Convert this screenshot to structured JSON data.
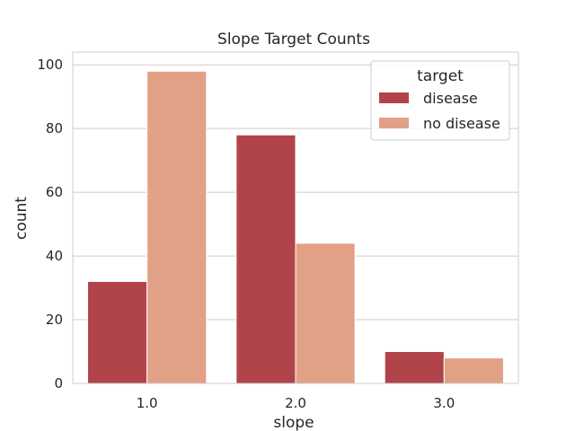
{
  "chart_data": {
    "type": "bar",
    "title": "Slope Target Counts",
    "xlabel": "slope",
    "ylabel": "count",
    "categories": [
      "1.0",
      "2.0",
      "3.0"
    ],
    "series": [
      {
        "name": "disease",
        "values": [
          32,
          78,
          10
        ],
        "color": "#b0444a"
      },
      {
        "name": "no disease",
        "values": [
          98,
          44,
          8
        ],
        "color": "#e2a186"
      }
    ],
    "ylim": [
      0,
      104
    ],
    "yticks": [
      0,
      20,
      40,
      60,
      80,
      100
    ],
    "grid": true,
    "legend": {
      "title": "target",
      "placement": "top-right"
    }
  }
}
